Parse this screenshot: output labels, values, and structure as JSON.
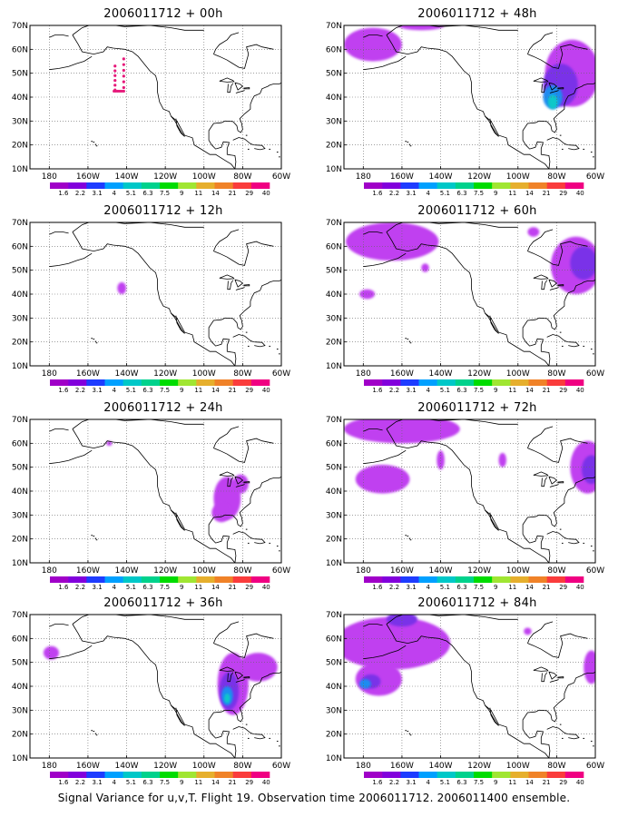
{
  "panels": [
    {
      "title": "2006011712 + 00h",
      "blobs": [
        {
          "lon": -144,
          "lat": 42.5,
          "rx": 2.5,
          "ry": 1.5,
          "level": 10
        },
        {
          "lon": -146,
          "lat": 48,
          "rx": 1.2,
          "ry": 5,
          "level": 10
        },
        {
          "lon": -141.5,
          "lat": 50,
          "rx": 1.2,
          "ry": 6,
          "level": 10
        }
      ]
    },
    {
      "title": "2006011712 + 12h",
      "blobs": [
        {
          "lon": -142.5,
          "lat": 42.5,
          "rx": 2.3,
          "ry": 2.5,
          "level": 0
        }
      ]
    },
    {
      "title": "2006011712 + 24h",
      "blobs": [
        {
          "lon": -88,
          "lat": 37,
          "rx": 7,
          "ry": 9,
          "level": 0
        },
        {
          "lon": -91,
          "lat": 31,
          "rx": 5,
          "ry": 4,
          "level": 0
        },
        {
          "lon": -81,
          "lat": 43,
          "rx": 4,
          "ry": 4,
          "level": 0
        },
        {
          "lon": -149,
          "lat": 60,
          "rx": 1.5,
          "ry": 1,
          "level": 0
        }
      ]
    },
    {
      "title": "2006011712 + 36h",
      "blobs": [
        {
          "lon": -179,
          "lat": 54,
          "rx": 4,
          "ry": 2.8,
          "level": 0
        },
        {
          "lon": -85,
          "lat": 41,
          "rx": 8,
          "ry": 13,
          "level": 0
        },
        {
          "lon": -72,
          "lat": 48,
          "rx": 10,
          "ry": 6,
          "level": 0
        },
        {
          "lon": -87,
          "lat": 38,
          "rx": 5,
          "ry": 8,
          "level": 1
        },
        {
          "lon": -88,
          "lat": 36,
          "rx": 3,
          "ry": 4,
          "level": 2
        },
        {
          "lon": -88,
          "lat": 35,
          "rx": 1.5,
          "ry": 2,
          "level": 3
        }
      ]
    },
    {
      "title": "2006011712 + 48h",
      "blobs": [
        {
          "lon": -175,
          "lat": 62,
          "rx": 15,
          "ry": 7,
          "level": 0
        },
        {
          "lon": -150,
          "lat": 70,
          "rx": 12,
          "ry": 2,
          "level": 0
        },
        {
          "lon": -72,
          "lat": 50,
          "rx": 14,
          "ry": 14,
          "level": 0
        },
        {
          "lon": -78,
          "lat": 45,
          "rx": 9,
          "ry": 9,
          "level": 1
        },
        {
          "lon": -82,
          "lat": 40,
          "rx": 5,
          "ry": 5,
          "level": 2
        },
        {
          "lon": -82,
          "lat": 38,
          "rx": 2.5,
          "ry": 3,
          "level": 3
        }
      ]
    },
    {
      "title": "2006011712 + 60h",
      "blobs": [
        {
          "lon": -165,
          "lat": 62,
          "rx": 24,
          "ry": 8,
          "level": 0
        },
        {
          "lon": -178,
          "lat": 40,
          "rx": 4,
          "ry": 2,
          "level": 0
        },
        {
          "lon": -148,
          "lat": 51,
          "rx": 2,
          "ry": 1.8,
          "level": 0
        },
        {
          "lon": -70,
          "lat": 52,
          "rx": 13,
          "ry": 12,
          "level": 0
        },
        {
          "lon": -66,
          "lat": 53,
          "rx": 7,
          "ry": 7,
          "level": 1
        },
        {
          "lon": -92,
          "lat": 66,
          "rx": 3,
          "ry": 2,
          "level": 0
        }
      ]
    },
    {
      "title": "2006011712 + 72h",
      "blobs": [
        {
          "lon": -160,
          "lat": 66,
          "rx": 30,
          "ry": 6,
          "level": 0
        },
        {
          "lon": -170,
          "lat": 45,
          "rx": 14,
          "ry": 6,
          "level": 0
        },
        {
          "lon": -140,
          "lat": 53,
          "rx": 2,
          "ry": 4,
          "level": 0
        },
        {
          "lon": -108,
          "lat": 53,
          "rx": 2,
          "ry": 3,
          "level": 0
        },
        {
          "lon": -64,
          "lat": 50,
          "rx": 9,
          "ry": 11,
          "level": 0
        },
        {
          "lon": -62,
          "lat": 49,
          "rx": 5,
          "ry": 6,
          "level": 1
        }
      ]
    },
    {
      "title": "2006011712 + 84h",
      "blobs": [
        {
          "lon": -165,
          "lat": 58,
          "rx": 30,
          "ry": 11,
          "level": 0
        },
        {
          "lon": -172,
          "lat": 43,
          "rx": 12,
          "ry": 7,
          "level": 0
        },
        {
          "lon": -160,
          "lat": 68,
          "rx": 8,
          "ry": 3,
          "level": 1
        },
        {
          "lon": -176,
          "lat": 42,
          "rx": 5,
          "ry": 3,
          "level": 1
        },
        {
          "lon": -179,
          "lat": 41,
          "rx": 3,
          "ry": 2,
          "level": 2
        },
        {
          "lon": -62,
          "lat": 48,
          "rx": 4,
          "ry": 7,
          "level": 0
        },
        {
          "lon": -95,
          "lat": 63,
          "rx": 2,
          "ry": 1.5,
          "level": 0
        }
      ]
    }
  ],
  "axes": {
    "lat_labels": [
      "70N",
      "60N",
      "50N",
      "40N",
      "30N",
      "20N",
      "10N"
    ],
    "lat_values": [
      70,
      60,
      50,
      40,
      30,
      20,
      10
    ],
    "lon_labels": [
      "180",
      "160W",
      "140W",
      "120W",
      "100W",
      "80W",
      "60W"
    ],
    "lon_values": [
      -180,
      -160,
      -140,
      -120,
      -100,
      -80,
      -60
    ]
  },
  "colorbar": {
    "labels": [
      "1.6",
      "2.2",
      "3.1",
      "4",
      "5.1",
      "6.3",
      "7.5",
      "9",
      "11",
      "14",
      "21",
      "29",
      "40"
    ],
    "colors": [
      "#a000c8",
      "#8200dc",
      "#1e3cff",
      "#00a0ff",
      "#00c8c8",
      "#00d28c",
      "#00dc00",
      "#a0e632",
      "#e6af2d",
      "#f08228",
      "#fa3c3c",
      "#f00082"
    ]
  },
  "colors": {
    "shade_levels": [
      "#c040f0",
      "#7a30e8",
      "#1a8cf0",
      "#10c8c8"
    ],
    "panel_00h": "#e6197a"
  },
  "footer": "Signal Variance for u,v,T. Flight 19. Observation time 2006011712. 2006011400 ensemble."
}
